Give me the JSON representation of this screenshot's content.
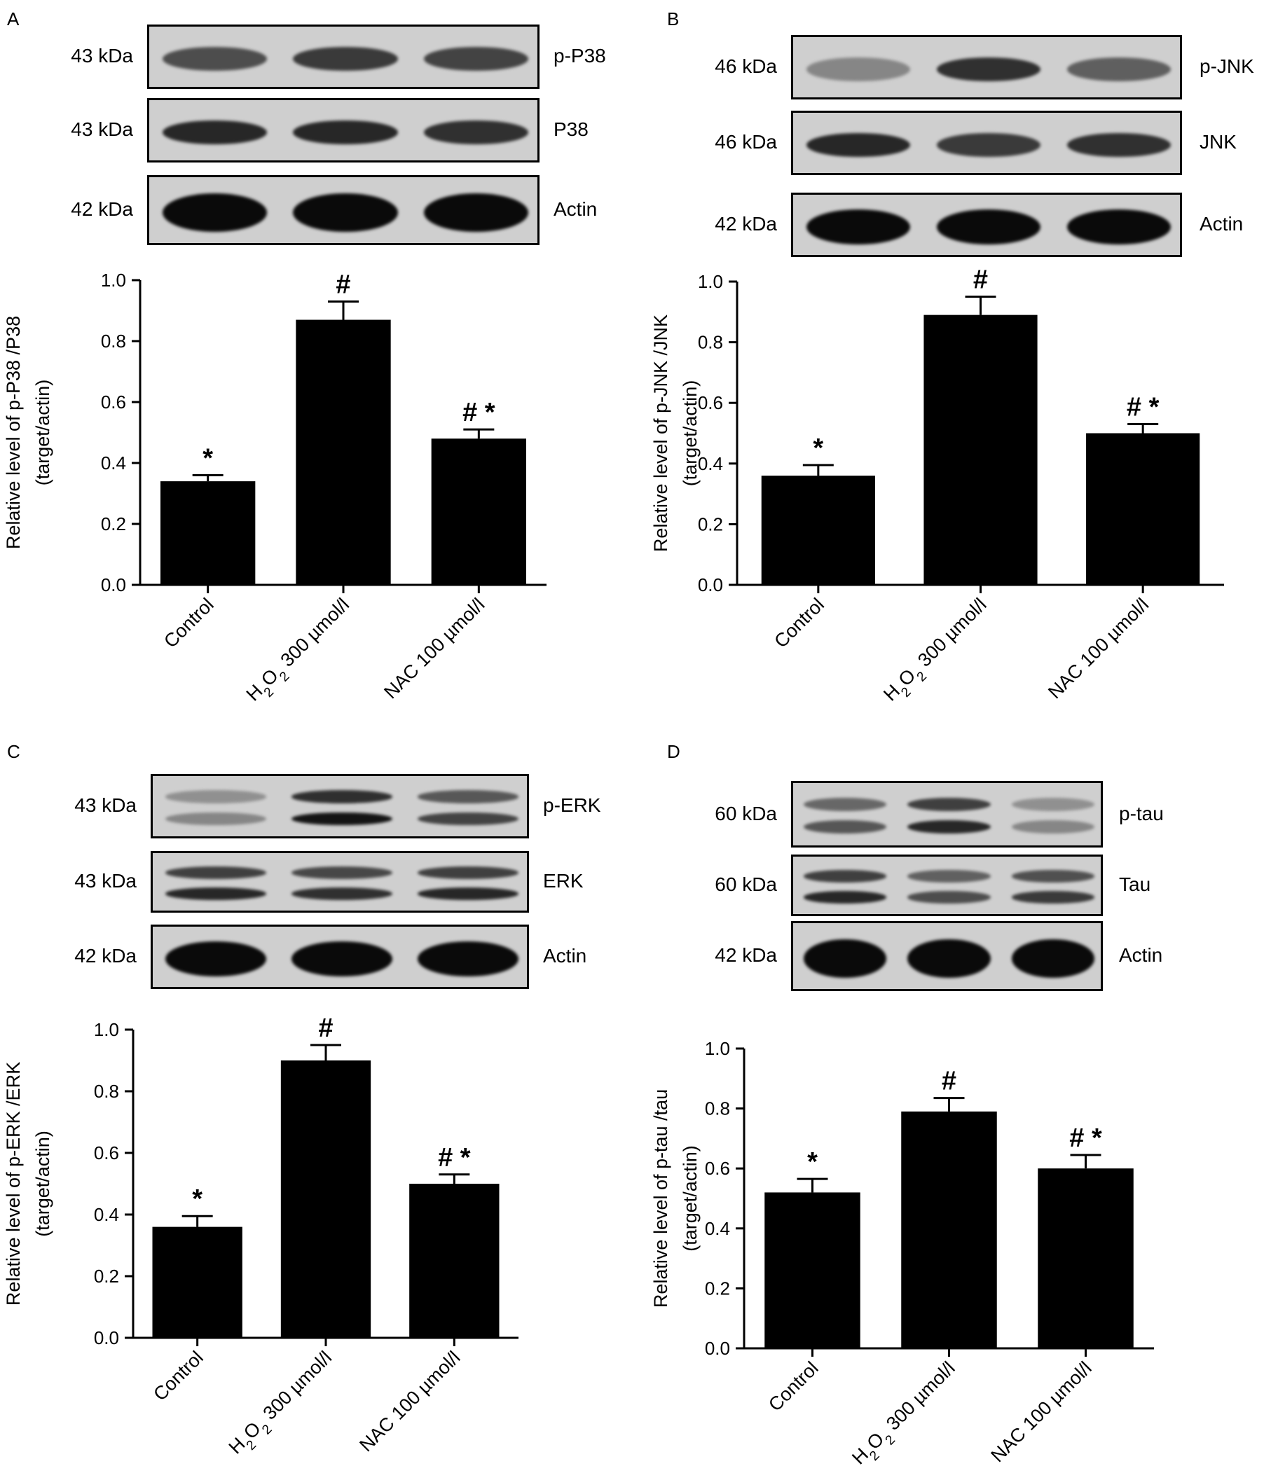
{
  "panels": [
    {
      "letter": "A",
      "blots": [
        {
          "kda": "43 kDa",
          "label": "p-P38",
          "intensity": [
            0.65,
            0.75,
            0.7
          ],
          "double": false
        },
        {
          "kda": "43 kDa",
          "label": "P38",
          "intensity": [
            0.85,
            0.85,
            0.8
          ],
          "double": false
        },
        {
          "kda": "42 kDa",
          "label": "Actin",
          "intensity": [
            1.0,
            1.0,
            1.0
          ],
          "double": false
        }
      ]
    },
    {
      "letter": "B",
      "blots": [
        {
          "kda": "46 kDa",
          "label": "p-JNK",
          "intensity": [
            0.35,
            0.8,
            0.55
          ],
          "double": false
        },
        {
          "kda": "46 kDa",
          "label": "JNK",
          "intensity": [
            0.85,
            0.75,
            0.8
          ],
          "double": false
        },
        {
          "kda": "42 kDa",
          "label": "Actin",
          "intensity": [
            1.0,
            1.0,
            1.0
          ],
          "double": false
        }
      ]
    },
    {
      "letter": "C",
      "blots": [
        {
          "kda": "43 kDa",
          "label": "p-ERK",
          "intensity": [
            0.35,
            0.95,
            0.7
          ],
          "double": true
        },
        {
          "kda": "43 kDa",
          "label": "ERK",
          "intensity": [
            0.85,
            0.8,
            0.85
          ],
          "double": true
        },
        {
          "kda": "42 kDa",
          "label": "Actin",
          "intensity": [
            1.0,
            1.0,
            1.0
          ],
          "double": false
        }
      ]
    },
    {
      "letter": "D",
      "blots": [
        {
          "kda": "60 kDa",
          "label": "p-tau",
          "intensity": [
            0.6,
            0.85,
            0.35
          ],
          "double": true
        },
        {
          "kda": "60 kDa",
          "label": "Tau",
          "intensity": [
            0.85,
            0.65,
            0.75
          ],
          "double": true
        },
        {
          "kda": "42 kDa",
          "label": "Actin",
          "intensity": [
            1.0,
            1.0,
            1.0
          ],
          "double": false
        }
      ]
    }
  ],
  "chart_data": [
    {
      "type": "bar",
      "panel": "A",
      "categories": [
        "Control",
        "H2O2 300 µmol/l",
        "NAC 100 µmol/l"
      ],
      "values": [
        0.34,
        0.87,
        0.48
      ],
      "errors": [
        0.02,
        0.06,
        0.03
      ],
      "annotations": [
        "*",
        "#",
        "# *"
      ],
      "ylabel": "Relative level of p-P38 /P38",
      "ylabel2": "(target/actin)",
      "ylim": [
        0,
        1.0
      ],
      "yticks": [
        "0.0",
        "0.2",
        "0.4",
        "0.6",
        "0.8",
        "1.0"
      ]
    },
    {
      "type": "bar",
      "panel": "B",
      "categories": [
        "Control",
        "H2O2 300 µmol/l",
        "NAC 100 µmol/l"
      ],
      "values": [
        0.36,
        0.89,
        0.5
      ],
      "errors": [
        0.035,
        0.06,
        0.03
      ],
      "annotations": [
        "*",
        "#",
        "# *"
      ],
      "ylabel": "Relative level of p-JNK /JNK",
      "ylabel2": "(target/actin)",
      "ylim": [
        0,
        1.0
      ],
      "yticks": [
        "0.0",
        "0.2",
        "0.4",
        "0.6",
        "0.8",
        "1.0"
      ]
    },
    {
      "type": "bar",
      "panel": "C",
      "categories": [
        "Control",
        "H2O2 300 µmol/l",
        "NAC 100 µmol/l"
      ],
      "values": [
        0.36,
        0.9,
        0.5
      ],
      "errors": [
        0.035,
        0.05,
        0.03
      ],
      "annotations": [
        "*",
        "#",
        "# *"
      ],
      "ylabel": "Relative level of p-ERK /ERK",
      "ylabel2": "(target/actin)",
      "ylim": [
        0,
        1.0
      ],
      "yticks": [
        "0.0",
        "0.2",
        "0.4",
        "0.6",
        "0.8",
        "1.0"
      ]
    },
    {
      "type": "bar",
      "panel": "D",
      "categories": [
        "Control",
        "H2O2 300 µmol/l",
        "NAC 100 µmol/l"
      ],
      "values": [
        0.52,
        0.79,
        0.6
      ],
      "errors": [
        0.045,
        0.045,
        0.045
      ],
      "annotations": [
        "*",
        "#",
        "# *"
      ],
      "ylabel": "Relative level of p-tau /tau",
      "ylabel2": "(target/actin)",
      "ylim": [
        0,
        1.0
      ],
      "yticks": [
        "0.0",
        "0.2",
        "0.4",
        "0.6",
        "0.8",
        "1.0"
      ]
    }
  ]
}
